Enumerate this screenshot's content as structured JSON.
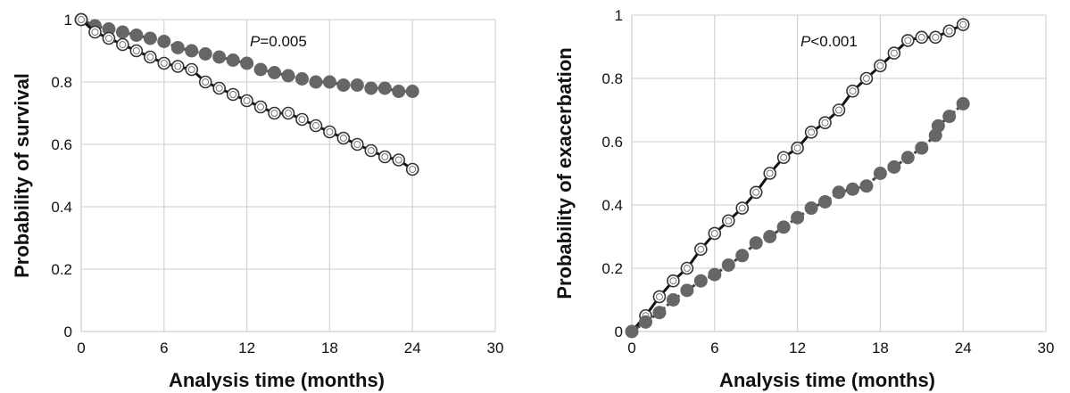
{
  "chart_data": [
    {
      "type": "line",
      "title": "",
      "xlabel": "Analysis time (months)",
      "ylabel": "Probability of survival",
      "xlim": [
        0,
        30
      ],
      "ylim": [
        0,
        1
      ],
      "xticks": [
        "0",
        "6",
        "12",
        "18",
        "24",
        "30"
      ],
      "yticks": [
        "0",
        "0.2",
        "0.4",
        "0.6",
        "0.8",
        "1"
      ],
      "grid": true,
      "annotation": {
        "italic": "P",
        "rest": "=0.005"
      },
      "series": [
        {
          "marker": "filled-circle",
          "color": "#666666",
          "x": [
            0,
            1,
            2,
            3,
            4,
            5,
            6,
            7,
            8,
            9,
            10,
            11,
            12,
            13,
            14,
            15,
            16,
            17,
            18,
            19,
            20,
            21,
            22,
            23,
            24
          ],
          "y": [
            1.0,
            0.98,
            0.97,
            0.96,
            0.95,
            0.94,
            0.93,
            0.91,
            0.9,
            0.89,
            0.88,
            0.87,
            0.86,
            0.84,
            0.83,
            0.82,
            0.81,
            0.8,
            0.8,
            0.79,
            0.79,
            0.78,
            0.78,
            0.77,
            0.77
          ]
        },
        {
          "marker": "open-circle",
          "color": "#666666",
          "x": [
            0,
            1,
            2,
            3,
            4,
            5,
            6,
            7,
            8,
            9,
            10,
            11,
            12,
            13,
            14,
            15,
            16,
            17,
            18,
            19,
            20,
            21,
            22,
            23,
            24
          ],
          "y": [
            1.0,
            0.96,
            0.94,
            0.92,
            0.9,
            0.88,
            0.86,
            0.85,
            0.84,
            0.8,
            0.78,
            0.76,
            0.74,
            0.72,
            0.7,
            0.7,
            0.68,
            0.66,
            0.64,
            0.62,
            0.6,
            0.58,
            0.56,
            0.55,
            0.52
          ]
        }
      ]
    },
    {
      "type": "line",
      "title": "",
      "xlabel": "Analysis time (months)",
      "ylabel": "Probability of exacerbation",
      "xlim": [
        0,
        30
      ],
      "ylim": [
        0,
        1
      ],
      "xticks": [
        "0",
        "6",
        "12",
        "18",
        "24",
        "30"
      ],
      "yticks": [
        "0",
        "0.2",
        "0.4",
        "0.6",
        "0.8",
        "1"
      ],
      "grid": true,
      "annotation": {
        "italic": "P",
        "rest": "<0.001"
      },
      "series": [
        {
          "marker": "open-circle",
          "color": "#666666",
          "x": [
            0,
            1,
            2,
            3,
            4,
            5,
            6,
            7,
            8,
            9,
            10,
            11,
            12,
            13,
            14,
            15,
            16,
            17,
            18,
            19,
            20,
            21,
            22,
            23,
            24
          ],
          "y": [
            0.0,
            0.05,
            0.11,
            0.16,
            0.2,
            0.26,
            0.31,
            0.35,
            0.39,
            0.44,
            0.5,
            0.55,
            0.58,
            0.63,
            0.66,
            0.7,
            0.76,
            0.8,
            0.84,
            0.88,
            0.92,
            0.93,
            0.93,
            0.95,
            0.97
          ]
        },
        {
          "marker": "filled-circle",
          "color": "#666666",
          "x": [
            0,
            1,
            2,
            3,
            4,
            5,
            6,
            7,
            8,
            9,
            10,
            11,
            12,
            13,
            14,
            15,
            16,
            17,
            18,
            19,
            20,
            21,
            22,
            22.2,
            23,
            24
          ],
          "y": [
            0.0,
            0.03,
            0.06,
            0.1,
            0.13,
            0.16,
            0.18,
            0.21,
            0.24,
            0.28,
            0.3,
            0.33,
            0.36,
            0.39,
            0.41,
            0.44,
            0.45,
            0.46,
            0.5,
            0.52,
            0.55,
            0.58,
            0.62,
            0.65,
            0.68,
            0.72
          ]
        }
      ]
    }
  ]
}
